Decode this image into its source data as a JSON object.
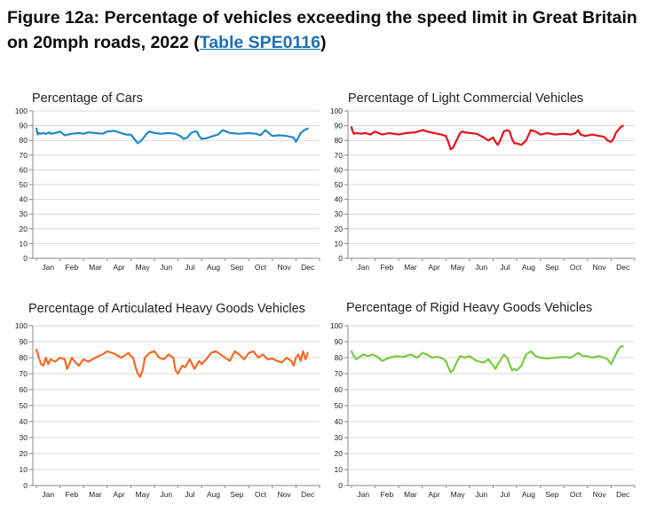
{
  "title": {
    "prefix": "Figure 12a: Percentage of vehicles exceeding the speed limit in Great Britain on 20mph roads, 2022 (",
    "link": "Table SPE0116",
    "suffix": ")"
  },
  "chart_data": [
    {
      "type": "line",
      "title": "Percentage of Cars",
      "color": "#1f8ac7",
      "ylim": [
        0,
        100
      ],
      "yticks": [
        0,
        10,
        20,
        30,
        40,
        50,
        60,
        70,
        80,
        90,
        100
      ],
      "xticks": [
        "Jan",
        "Feb",
        "Mar",
        "Apr",
        "May",
        "Jun",
        "Jul",
        "Aug",
        "Sep",
        "Oct",
        "Nov",
        "Dec"
      ],
      "x": [
        0,
        0.03,
        0.06,
        0.1,
        0.2,
        0.3,
        0.4,
        0.5,
        0.55,
        0.6,
        0.8,
        1,
        1.2,
        1.5,
        1.8,
        2.0,
        2.2,
        2.5,
        2.8,
        3.0,
        3.3,
        3.6,
        3.8,
        4.0,
        4.15,
        4.3,
        4.45,
        4.6,
        4.7,
        4.8,
        5.0,
        5.3,
        5.6,
        5.9,
        6.1,
        6.25,
        6.4,
        6.55,
        6.7,
        6.8,
        6.9,
        7.0,
        7.2,
        7.5,
        7.7,
        7.9,
        8.2,
        8.6,
        9.0,
        9.3,
        9.5,
        9.7,
        10.0,
        10.3,
        10.6,
        10.75,
        10.9,
        11.0,
        11.1,
        11.2,
        11.35,
        11.5
      ],
      "values": [
        88,
        86,
        84,
        85,
        84.5,
        85,
        84.5,
        85,
        85.5,
        84.5,
        85,
        86,
        83.5,
        84.5,
        85,
        84.5,
        85.5,
        85,
        84.5,
        86,
        86.5,
        85,
        84,
        84,
        81,
        78,
        80,
        83,
        85,
        86,
        85,
        84.5,
        85,
        84.5,
        83,
        81,
        82,
        85,
        86,
        86,
        83,
        81,
        81.5,
        83,
        84,
        87,
        85,
        84.5,
        85,
        84.5,
        83.5,
        87,
        83,
        83.5,
        83,
        82.5,
        82,
        79,
        82,
        85,
        87,
        88
      ]
    },
    {
      "type": "line",
      "title": "Percentage of Light Commercial Vehicles",
      "color": "#e3131b",
      "ylim": [
        0,
        100
      ],
      "yticks": [
        0,
        10,
        20,
        30,
        40,
        50,
        60,
        70,
        80,
        90,
        100
      ],
      "xticks": [
        "Jan",
        "Feb",
        "Mar",
        "Apr",
        "May",
        "Jun",
        "Jul",
        "Aug",
        "Sep",
        "Oct",
        "Nov",
        "Dec"
      ],
      "x": [
        0,
        0.05,
        0.1,
        0.2,
        0.4,
        0.6,
        0.8,
        1.0,
        1.3,
        1.6,
        2.0,
        2.3,
        2.7,
        3.0,
        3.2,
        3.5,
        3.8,
        4.0,
        4.1,
        4.2,
        4.3,
        4.45,
        4.6,
        4.7,
        4.8,
        5.0,
        5.3,
        5.6,
        5.8,
        6.0,
        6.1,
        6.2,
        6.3,
        6.45,
        6.6,
        6.7,
        6.8,
        6.9,
        7.0,
        7.2,
        7.4,
        7.6,
        7.8,
        8.0,
        8.3,
        8.6,
        9.0,
        9.3,
        9.5,
        9.6,
        9.7,
        9.9,
        10.2,
        10.5,
        10.7,
        10.85,
        11.0,
        11.1,
        11.2,
        11.3,
        11.4,
        11.5
      ],
      "values": [
        89,
        86,
        84.5,
        85,
        84.5,
        85,
        84,
        86,
        84,
        85,
        84,
        85,
        85.5,
        87,
        86,
        85,
        84,
        83,
        79,
        74,
        75,
        80,
        85,
        86,
        85.5,
        85,
        84.5,
        82,
        80,
        82,
        79,
        77,
        80,
        86,
        87,
        86,
        81,
        78,
        78,
        77,
        80,
        87,
        86,
        84,
        85,
        84,
        84.5,
        84,
        85,
        87,
        84,
        83,
        84,
        83,
        82.5,
        80,
        79,
        81,
        85,
        87,
        89,
        90
      ]
    },
    {
      "type": "line",
      "title": "Percentage of Articulated Heavy Goods Vehicles",
      "color": "#f46a25",
      "ylim": [
        0,
        100
      ],
      "yticks": [
        0,
        10,
        20,
        30,
        40,
        50,
        60,
        70,
        80,
        90,
        100
      ],
      "xticks": [
        "Jan",
        "Feb",
        "Mar",
        "Apr",
        "May",
        "Jun",
        "Jul",
        "Aug",
        "Sep",
        "Oct",
        "Nov",
        "Dec"
      ],
      "x": [
        0,
        0.05,
        0.1,
        0.2,
        0.3,
        0.4,
        0.5,
        0.6,
        0.8,
        1.0,
        1.2,
        1.3,
        1.4,
        1.5,
        1.6,
        1.8,
        2.0,
        2.2,
        2.5,
        2.8,
        3.0,
        3.3,
        3.6,
        3.9,
        4.0,
        4.1,
        4.2,
        4.3,
        4.4,
        4.5,
        4.6,
        4.8,
        5.0,
        5.2,
        5.4,
        5.6,
        5.8,
        5.9,
        6.0,
        6.1,
        6.2,
        6.3,
        6.5,
        6.7,
        6.9,
        7.0,
        7.2,
        7.4,
        7.6,
        7.8,
        8.0,
        8.2,
        8.4,
        8.6,
        8.8,
        9.0,
        9.2,
        9.4,
        9.6,
        9.8,
        10.0,
        10.2,
        10.4,
        10.6,
        10.8,
        10.9,
        11.0,
        11.1,
        11.2,
        11.3,
        11.4,
        11.5
      ],
      "values": [
        85,
        83,
        80,
        76,
        75,
        80,
        76,
        79,
        77.5,
        80,
        79,
        73,
        76,
        80,
        78,
        75,
        79,
        77.5,
        80,
        82,
        84,
        82.5,
        80,
        83,
        81,
        80,
        74,
        70,
        68,
        72,
        80,
        83,
        84,
        80,
        79,
        82,
        80,
        72,
        70,
        73,
        75,
        74,
        79,
        73,
        78,
        76,
        79,
        83,
        84,
        82,
        80,
        78,
        84,
        82,
        79,
        83,
        84,
        80,
        82,
        79,
        79.5,
        78,
        77,
        80,
        78,
        75,
        80,
        82,
        78,
        84,
        79,
        83
      ]
    },
    {
      "type": "line",
      "title": "Percentage of Rigid Heavy Goods Vehicles",
      "color": "#7ac943",
      "ylim": [
        0,
        100
      ],
      "yticks": [
        0,
        10,
        20,
        30,
        40,
        50,
        60,
        70,
        80,
        90,
        100
      ],
      "xticks": [
        "Jan",
        "Feb",
        "Mar",
        "Apr",
        "May",
        "Jun",
        "Jul",
        "Aug",
        "Sep",
        "Oct",
        "Nov",
        "Dec"
      ],
      "x": [
        0,
        0.1,
        0.2,
        0.3,
        0.5,
        0.7,
        0.9,
        1.1,
        1.3,
        1.6,
        1.9,
        2.2,
        2.5,
        2.8,
        3.0,
        3.2,
        3.4,
        3.6,
        3.8,
        4.0,
        4.1,
        4.2,
        4.3,
        4.45,
        4.6,
        4.7,
        4.8,
        5.0,
        5.3,
        5.6,
        5.8,
        6.0,
        6.1,
        6.2,
        6.3,
        6.45,
        6.6,
        6.7,
        6.8,
        6.9,
        7.0,
        7.2,
        7.4,
        7.6,
        7.8,
        8.0,
        8.3,
        8.6,
        9.0,
        9.3,
        9.6,
        9.8,
        10.0,
        10.2,
        10.5,
        10.7,
        10.85,
        11.0,
        11.1,
        11.2,
        11.3,
        11.4,
        11.5
      ],
      "values": [
        84,
        81,
        79,
        80,
        82,
        81,
        82,
        80.5,
        78,
        80,
        81,
        80.5,
        82,
        80,
        83,
        82,
        80,
        80.5,
        80,
        78,
        74,
        71,
        72,
        77,
        81,
        80.5,
        80,
        81,
        78,
        77,
        79,
        75,
        73,
        76,
        78,
        82,
        80,
        76,
        72,
        73,
        72,
        75,
        82,
        84,
        81,
        80,
        79.5,
        80,
        80.5,
        80,
        83,
        81,
        81,
        80,
        81,
        80,
        79,
        76,
        79,
        82,
        85,
        87,
        87
      ]
    }
  ]
}
